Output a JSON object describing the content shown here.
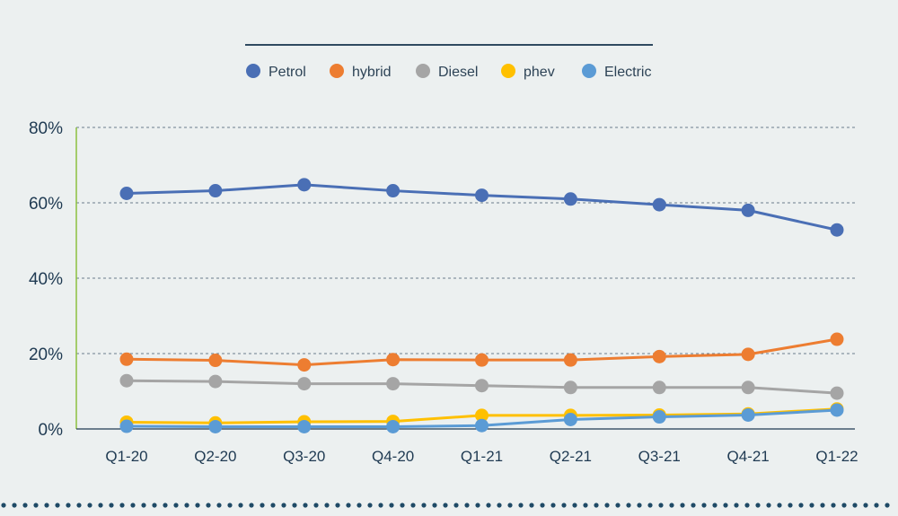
{
  "chart_data": {
    "type": "line",
    "categories": [
      "Q1-20",
      "Q2-20",
      "Q3-20",
      "Q4-20",
      "Q1-21",
      "Q2-21",
      "Q3-21",
      "Q4-21",
      "Q1-22"
    ],
    "y_ticks": [
      "0%",
      "20%",
      "40%",
      "60%",
      "80%"
    ],
    "ylim": [
      0,
      80
    ],
    "y_unit": "%",
    "grid": "horizontal dashed",
    "legend_position": "top",
    "series": [
      {
        "name": "Petrol",
        "color": "#4a6fb5",
        "values": [
          62.5,
          63.2,
          64.8,
          63.2,
          62.0,
          61.0,
          59.5,
          58.0,
          52.8
        ]
      },
      {
        "name": "hybrid",
        "color": "#ed7d31",
        "values": [
          18.5,
          18.2,
          17.0,
          18.4,
          18.3,
          18.3,
          19.2,
          19.8,
          23.8
        ]
      },
      {
        "name": "Diesel",
        "color": "#a5a5a5",
        "values": [
          12.8,
          12.6,
          12.0,
          12.0,
          11.5,
          11.0,
          11.0,
          11.0,
          9.5
        ]
      },
      {
        "name": "phev",
        "color": "#ffc000",
        "values": [
          1.8,
          1.6,
          1.9,
          2.0,
          3.6,
          3.6,
          3.7,
          4.0,
          5.3
        ]
      },
      {
        "name": "Electric",
        "color": "#5b9bd5",
        "values": [
          0.7,
          0.6,
          0.6,
          0.6,
          0.9,
          2.5,
          3.2,
          3.7,
          5.0
        ]
      }
    ]
  }
}
